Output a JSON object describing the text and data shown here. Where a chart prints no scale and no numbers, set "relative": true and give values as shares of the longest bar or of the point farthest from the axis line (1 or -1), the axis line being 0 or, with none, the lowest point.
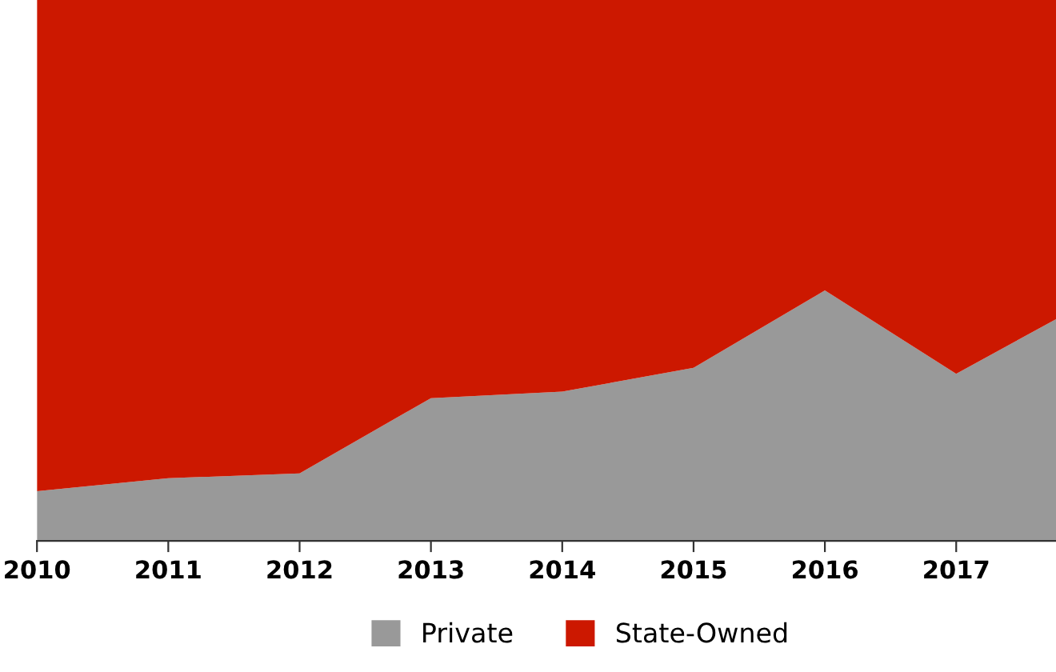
{
  "chart_data": {
    "type": "area",
    "stacked": true,
    "relative": true,
    "x": [
      2010,
      2011,
      2012,
      2013,
      2014,
      2015,
      2016,
      2017,
      2017.76
    ],
    "series": [
      {
        "name": "Private",
        "color": "#999999",
        "values": [
          0.092,
          0.116,
          0.125,
          0.264,
          0.276,
          0.32,
          0.463,
          0.309,
          0.41
        ]
      },
      {
        "name": "State-Owned",
        "color": "#cc1800",
        "values": [
          0.908,
          0.884,
          0.875,
          0.736,
          0.724,
          0.68,
          0.537,
          0.691,
          0.59
        ]
      }
    ],
    "xlim": [
      2010,
      2017.76
    ],
    "xticks": [
      2010,
      2011,
      2012,
      2013,
      2014,
      2015,
      2016,
      2017
    ],
    "grid": false,
    "legend": "bottom"
  }
}
